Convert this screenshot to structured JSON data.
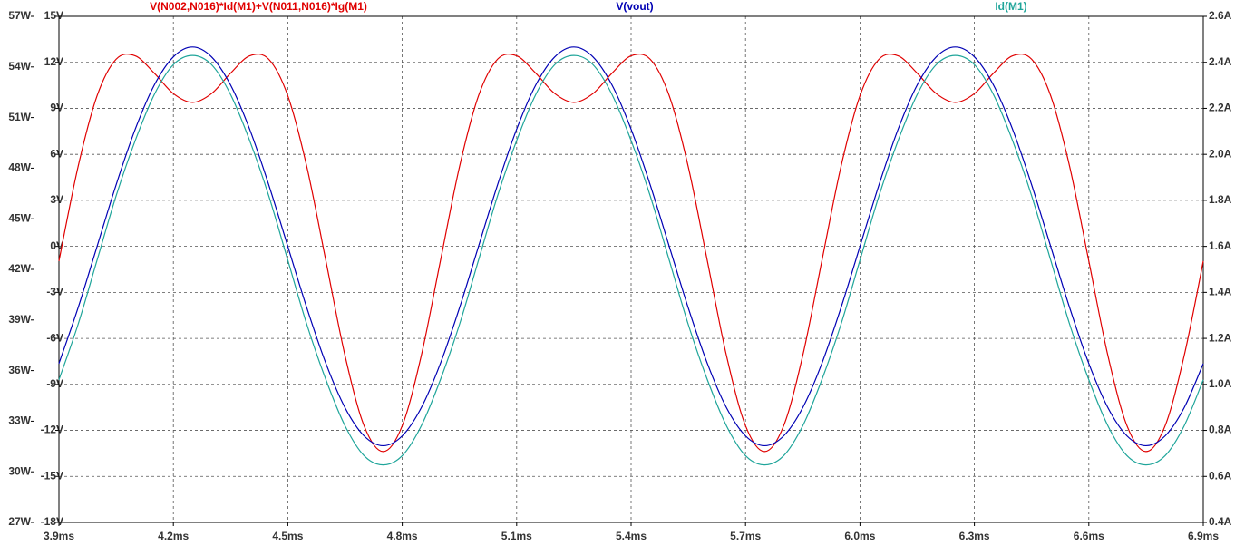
{
  "chart_data": {
    "type": "line",
    "xlim": [
      3.9,
      6.9
    ],
    "xticks": [
      {
        "value": 3.9,
        "label": "3.9ms"
      },
      {
        "value": 4.2,
        "label": "4.2ms"
      },
      {
        "value": 4.5,
        "label": "4.5ms"
      },
      {
        "value": 4.8,
        "label": "4.8ms"
      },
      {
        "value": 5.1,
        "label": "5.1ms"
      },
      {
        "value": 5.4,
        "label": "5.4ms"
      },
      {
        "value": 5.7,
        "label": "5.7ms"
      },
      {
        "value": 6.0,
        "label": "6.0ms"
      },
      {
        "value": 6.3,
        "label": "6.3ms"
      },
      {
        "value": 6.6,
        "label": "6.6ms"
      },
      {
        "value": 6.9,
        "label": "6.9ms"
      }
    ],
    "ylim": [
      -18,
      15
    ],
    "yticks": [
      {
        "value": 15,
        "label": "15V"
      },
      {
        "value": 12,
        "label": "12V"
      },
      {
        "value": 9,
        "label": "9V"
      },
      {
        "value": 6,
        "label": "6V"
      },
      {
        "value": 3,
        "label": "3V"
      },
      {
        "value": 0,
        "label": "0V"
      },
      {
        "value": -3,
        "label": "-3V"
      },
      {
        "value": -6,
        "label": "-6V"
      },
      {
        "value": -9,
        "label": "-9V"
      },
      {
        "value": -12,
        "label": "-12V"
      },
      {
        "value": -15,
        "label": "-15V"
      },
      {
        "value": -18,
        "label": "-18V"
      }
    ],
    "y2lim": [
      0.4,
      2.6
    ],
    "y2ticks": [
      {
        "value": 2.6,
        "label": "2.6A"
      },
      {
        "value": 2.4,
        "label": "2.4A"
      },
      {
        "value": 2.2,
        "label": "2.2A"
      },
      {
        "value": 2.0,
        "label": "2.0A"
      },
      {
        "value": 1.8,
        "label": "1.8A"
      },
      {
        "value": 1.6,
        "label": "1.6A"
      },
      {
        "value": 1.4,
        "label": "1.4A"
      },
      {
        "value": 1.2,
        "label": "1.2A"
      },
      {
        "value": 1.0,
        "label": "1.0A"
      },
      {
        "value": 0.8,
        "label": "0.8A"
      },
      {
        "value": 0.6,
        "label": "0.6A"
      },
      {
        "value": 0.4,
        "label": "0.4A"
      }
    ],
    "y3lim": [
      27,
      57
    ],
    "y3ticks": [
      {
        "value": 57,
        "label": "57W"
      },
      {
        "value": 54,
        "label": "54W"
      },
      {
        "value": 51,
        "label": "51W"
      },
      {
        "value": 48,
        "label": "48W"
      },
      {
        "value": 45,
        "label": "45W"
      },
      {
        "value": 42,
        "label": "42W"
      },
      {
        "value": 39,
        "label": "39W"
      },
      {
        "value": 36,
        "label": "36W"
      },
      {
        "value": 33,
        "label": "33W"
      },
      {
        "value": 30,
        "label": "30W"
      },
      {
        "value": 27,
        "label": "27W"
      }
    ],
    "grid": true,
    "x": [
      3.9,
      3.95,
      4,
      4.05,
      4.1,
      4.15,
      4.2,
      4.25,
      4.3,
      4.35,
      4.4,
      4.45,
      4.5,
      4.55,
      4.6,
      4.65,
      4.7,
      4.75,
      4.8,
      4.85,
      4.9,
      4.95,
      5,
      5.05,
      5.1,
      5.15,
      5.2,
      5.25,
      5.3,
      5.35,
      5.4,
      5.45,
      5.5,
      5.55,
      5.6,
      5.65,
      5.7,
      5.75,
      5.8,
      5.85,
      5.9,
      5.95,
      6,
      6.05,
      6.1,
      6.15,
      6.2,
      6.25,
      6.3,
      6.35,
      6.4,
      6.45,
      6.5,
      6.55,
      6.6,
      6.65,
      6.7,
      6.75,
      6.8,
      6.85,
      6.9
    ],
    "series": [
      {
        "name": "V(N002,N016)*Id(M1)+V(N011,N016)*Ig(M1)",
        "color": "#e00000",
        "axis": "y3",
        "values": [
          42.49,
          48.07,
          52.29,
          54.46,
          54.66,
          53.63,
          52.42,
          51.9,
          52.42,
          53.63,
          54.66,
          54.46,
          52.29,
          48.07,
          42.49,
          36.89,
          32.73,
          31.2,
          32.73,
          36.89,
          42.49,
          48.07,
          52.29,
          54.46,
          54.66,
          53.63,
          52.42,
          51.9,
          52.42,
          53.63,
          54.66,
          54.46,
          52.29,
          48.07,
          42.49,
          36.89,
          32.73,
          31.2,
          32.73,
          36.89,
          42.49,
          48.07,
          52.29,
          54.46,
          54.66,
          53.63,
          52.42,
          51.9,
          52.42,
          53.63,
          54.66,
          54.46,
          52.29,
          48.07,
          42.49,
          36.89,
          32.73,
          31.2,
          32.73,
          36.89,
          42.49
        ]
      },
      {
        "name": "V(vout)",
        "color": "#0000b4",
        "axis": "y",
        "values": [
          -7.64,
          -4.02,
          0,
          4.02,
          7.64,
          10.52,
          12.36,
          13,
          12.36,
          10.52,
          7.64,
          4.02,
          0,
          -4.02,
          -7.64,
          -10.52,
          -12.36,
          -13,
          -12.36,
          -10.52,
          -7.64,
          -4.02,
          0,
          4.02,
          7.64,
          10.52,
          12.36,
          13,
          12.36,
          10.52,
          7.64,
          4.02,
          0,
          -4.02,
          -7.64,
          -10.52,
          -12.36,
          -13,
          -12.36,
          -10.52,
          -7.64,
          -4.02,
          0,
          4.02,
          7.64,
          10.52,
          12.36,
          13,
          12.36,
          10.52,
          7.64,
          4.02,
          0,
          -4.02,
          -7.64,
          -10.52,
          -12.36,
          -13,
          -12.36,
          -10.52,
          -7.64
        ]
      },
      {
        "name": "Id(M1)",
        "color": "#1fa59a",
        "axis": "y2",
        "values": [
          1.02,
          1.26,
          1.54,
          1.82,
          2.06,
          2.26,
          2.39,
          2.43,
          2.39,
          2.26,
          2.06,
          1.82,
          1.54,
          1.26,
          1.02,
          0.82,
          0.69,
          0.65,
          0.69,
          0.82,
          1.02,
          1.26,
          1.54,
          1.82,
          2.06,
          2.26,
          2.39,
          2.43,
          2.39,
          2.26,
          2.06,
          1.82,
          1.54,
          1.26,
          1.02,
          0.82,
          0.69,
          0.65,
          0.69,
          0.82,
          1.02,
          1.26,
          1.54,
          1.82,
          2.06,
          2.26,
          2.39,
          2.43,
          2.39,
          2.26,
          2.06,
          1.82,
          1.54,
          1.26,
          1.02,
          0.82,
          0.69,
          0.65,
          0.69,
          0.82,
          1.02
        ]
      }
    ]
  }
}
